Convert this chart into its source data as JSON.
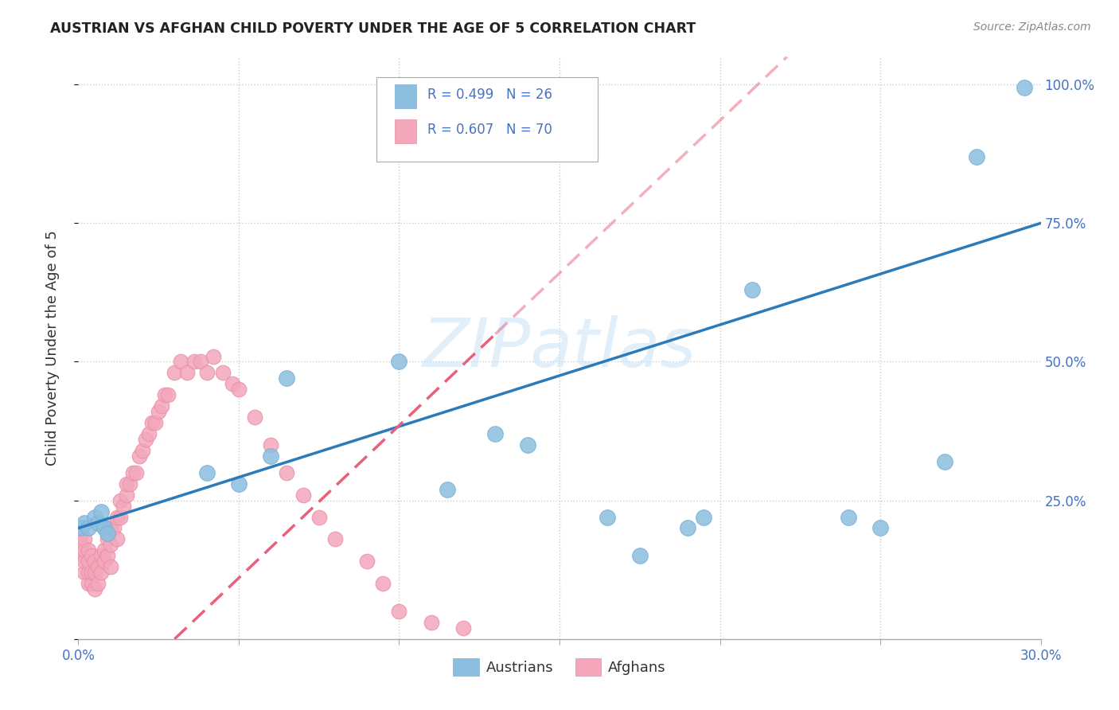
{
  "title": "AUSTRIAN VS AFGHAN CHILD POVERTY UNDER THE AGE OF 5 CORRELATION CHART",
  "source": "Source: ZipAtlas.com",
  "ylabel": "Child Poverty Under the Age of 5",
  "xlim": [
    0.0,
    0.3
  ],
  "ylim": [
    0.0,
    1.05
  ],
  "blue_color": "#8cbfdf",
  "blue_edge": "#7ab0d4",
  "pink_color": "#f4a7bb",
  "pink_edge": "#e890a8",
  "blue_line_color": "#2b7bba",
  "pink_line_color": "#e8607a",
  "blue_R": 0.499,
  "blue_N": 26,
  "pink_R": 0.607,
  "pink_N": 70,
  "legend_austrians": "Austrians",
  "legend_afghans": "Afghans",
  "watermark": "ZIPatlas",
  "blue_line_x0": 0.0,
  "blue_line_y0": 0.2,
  "blue_line_x1": 0.3,
  "blue_line_y1": 0.75,
  "pink_line_x0": 0.03,
  "pink_line_y0": 0.0,
  "pink_line_x1": 0.13,
  "pink_line_y1": 0.55,
  "aus_x": [
    0.001,
    0.002,
    0.003,
    0.005,
    0.006,
    0.007,
    0.008,
    0.009,
    0.04,
    0.05,
    0.06,
    0.065,
    0.1,
    0.115,
    0.13,
    0.14,
    0.165,
    0.175,
    0.19,
    0.195,
    0.21,
    0.24,
    0.25,
    0.27,
    0.28,
    0.295
  ],
  "aus_y": [
    0.2,
    0.21,
    0.2,
    0.22,
    0.21,
    0.23,
    0.2,
    0.19,
    0.3,
    0.28,
    0.33,
    0.47,
    0.5,
    0.27,
    0.37,
    0.35,
    0.22,
    0.15,
    0.2,
    0.22,
    0.63,
    0.22,
    0.2,
    0.32,
    0.87,
    0.995
  ],
  "afg_x": [
    0.001,
    0.001,
    0.001,
    0.002,
    0.002,
    0.002,
    0.002,
    0.003,
    0.003,
    0.003,
    0.003,
    0.004,
    0.004,
    0.004,
    0.005,
    0.005,
    0.005,
    0.006,
    0.006,
    0.007,
    0.007,
    0.008,
    0.008,
    0.009,
    0.009,
    0.01,
    0.01,
    0.01,
    0.011,
    0.012,
    0.012,
    0.013,
    0.013,
    0.014,
    0.015,
    0.015,
    0.016,
    0.017,
    0.018,
    0.019,
    0.02,
    0.021,
    0.022,
    0.023,
    0.024,
    0.025,
    0.026,
    0.027,
    0.028,
    0.03,
    0.032,
    0.034,
    0.036,
    0.038,
    0.04,
    0.042,
    0.045,
    0.048,
    0.05,
    0.055,
    0.06,
    0.065,
    0.07,
    0.075,
    0.08,
    0.09,
    0.095,
    0.1,
    0.11,
    0.12
  ],
  "afg_y": [
    0.15,
    0.17,
    0.19,
    0.12,
    0.14,
    0.16,
    0.18,
    0.1,
    0.12,
    0.14,
    0.16,
    0.1,
    0.12,
    0.15,
    0.09,
    0.12,
    0.14,
    0.1,
    0.13,
    0.12,
    0.15,
    0.14,
    0.16,
    0.15,
    0.18,
    0.13,
    0.17,
    0.2,
    0.2,
    0.18,
    0.22,
    0.22,
    0.25,
    0.24,
    0.26,
    0.28,
    0.28,
    0.3,
    0.3,
    0.33,
    0.34,
    0.36,
    0.37,
    0.39,
    0.39,
    0.41,
    0.42,
    0.44,
    0.44,
    0.48,
    0.5,
    0.48,
    0.5,
    0.5,
    0.48,
    0.51,
    0.48,
    0.46,
    0.45,
    0.4,
    0.35,
    0.3,
    0.26,
    0.22,
    0.18,
    0.14,
    0.1,
    0.05,
    0.03,
    0.02
  ]
}
